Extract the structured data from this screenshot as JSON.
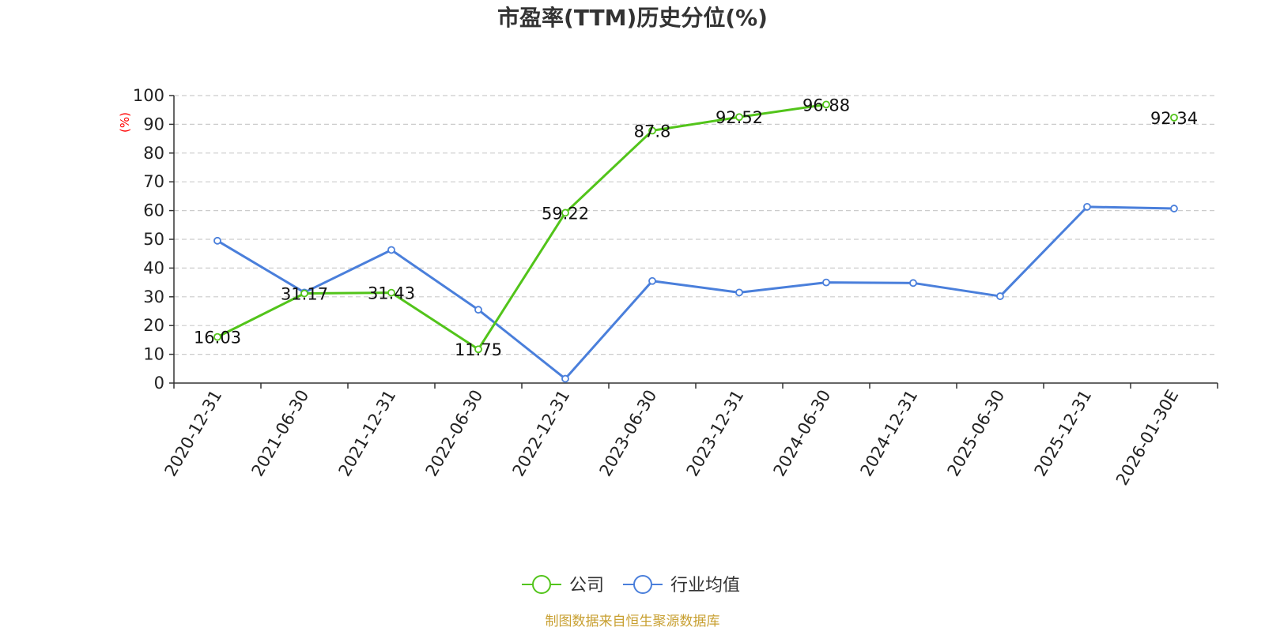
{
  "chart_data": {
    "type": "line",
    "title": "市盈率(TTM)历史分位(%)",
    "ylabel": "(%)",
    "xlabel": "",
    "ylim": [
      0,
      100
    ],
    "ytick_values": [
      0,
      10,
      20,
      30,
      40,
      50,
      60,
      70,
      80,
      90,
      100
    ],
    "grid": true,
    "legend_position": "bottom-center",
    "categories": [
      "2020-12-31",
      "2021-06-30",
      "2021-12-31",
      "2022-06-30",
      "2022-12-31",
      "2023-06-30",
      "2023-12-31",
      "2024-06-30",
      "2024-12-31",
      "2025-06-30",
      "2025-12-31",
      "2026-01-30E"
    ],
    "series": [
      {
        "name": "公司",
        "color": "#52c41a",
        "values": [
          16.03,
          31.17,
          31.43,
          11.75,
          59.22,
          87.8,
          92.52,
          96.88,
          null,
          null,
          null,
          92.34
        ],
        "labels": [
          "16.03",
          "31.17",
          "31.43",
          "11.75",
          "59.22",
          "87.8",
          "92.52",
          "96.88",
          null,
          null,
          null,
          "92.34"
        ]
      },
      {
        "name": "行业均值",
        "color": "#4a7fdb",
        "values": [
          49.5,
          31.5,
          46.3,
          25.5,
          1.5,
          35.5,
          31.5,
          35.0,
          34.8,
          30.2,
          61.3,
          60.7
        ]
      }
    ]
  },
  "colors": {
    "title": "#333333",
    "axis": "#333333",
    "grid": "#cccccc",
    "unit_label": "#ff0000",
    "source": "#c8a032"
  },
  "source_text": "制图数据来自恒生聚源数据库"
}
